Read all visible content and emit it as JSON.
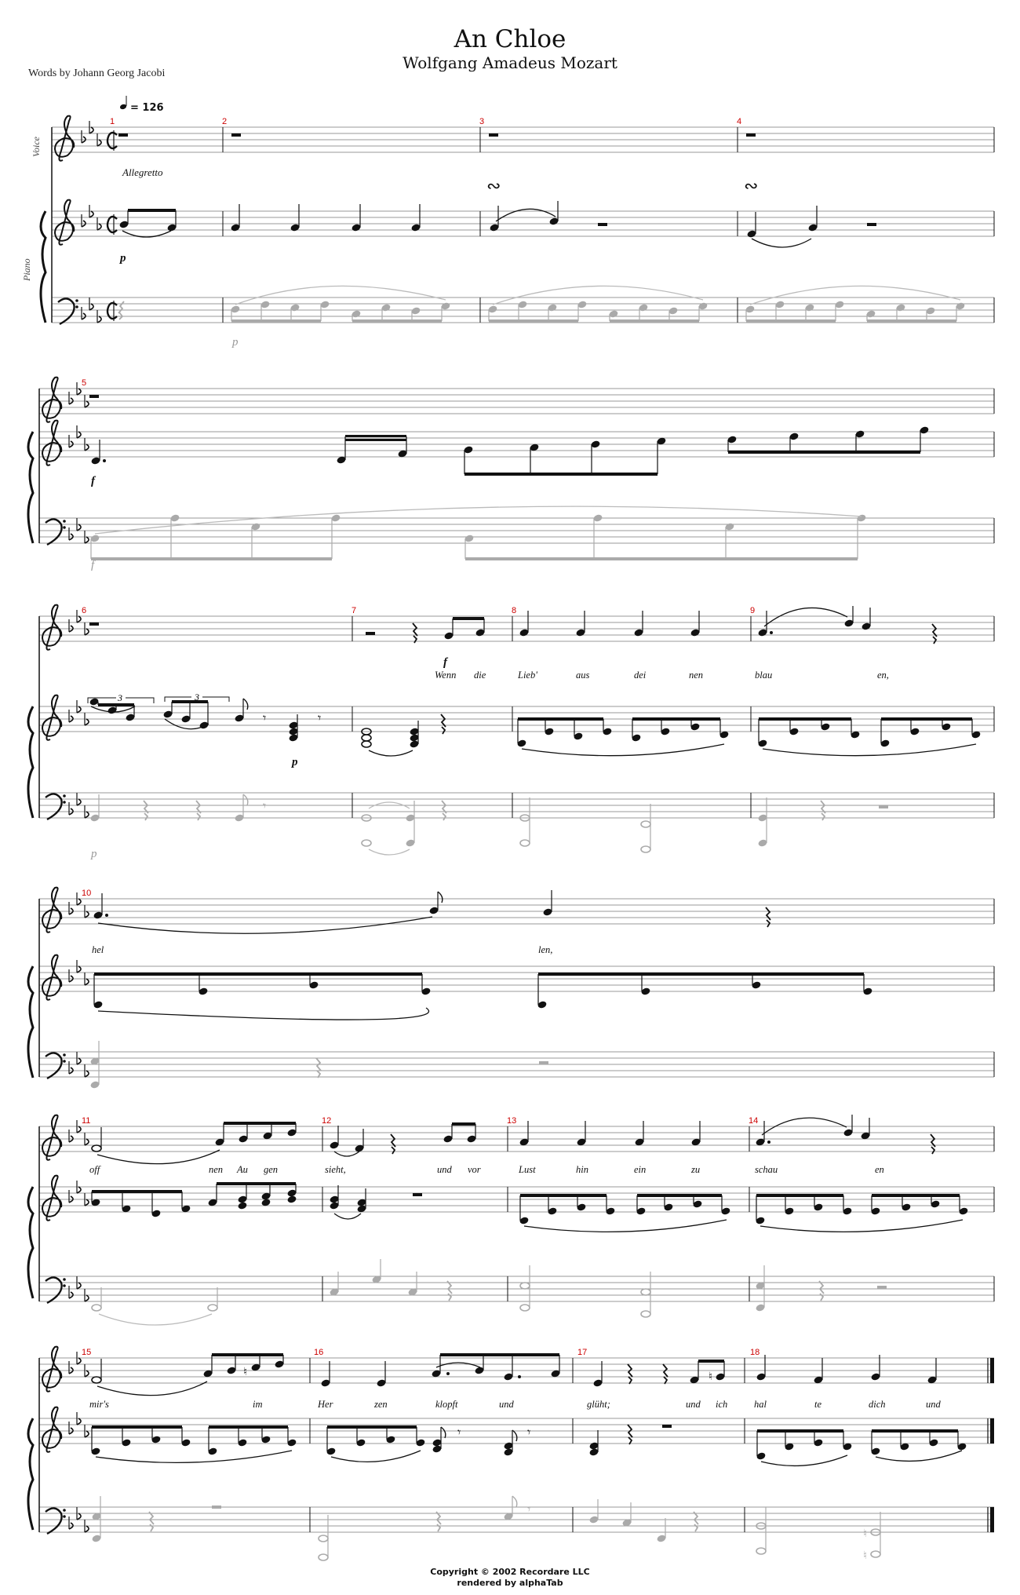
{
  "header": {
    "title": "An Chloe",
    "composer": "Wolfgang Amadeus Mozart",
    "words": "Words by Johann Georg Jacobi"
  },
  "instruments": {
    "voice": "Voice",
    "piano": "Piano"
  },
  "tempo": {
    "bpm_label": "= 126",
    "marking": "Allegretto"
  },
  "systems": [
    {
      "measures": [
        "1",
        "2",
        "3",
        "4"
      ],
      "lyrics": [],
      "dynamics": {
        "upper": "p",
        "lower": "p"
      }
    },
    {
      "measures": [
        "5"
      ],
      "lyrics": [],
      "dynamics": {
        "upper": "f",
        "lower": "f"
      }
    },
    {
      "measures": [
        "6",
        "7",
        "8",
        "9"
      ],
      "lyrics": [
        "Wenn",
        "die",
        "Lieb'",
        "aus",
        "dei",
        "nen",
        "blau",
        "en,"
      ],
      "dynamics": {
        "voice": "f",
        "upper": "p",
        "lower": "p"
      }
    },
    {
      "measures": [
        "10"
      ],
      "lyrics": [
        "hel",
        "len,"
      ],
      "dynamics": {}
    },
    {
      "measures": [
        "11",
        "12",
        "13",
        "14"
      ],
      "lyrics": [
        "off",
        "nen",
        "Au",
        "gen",
        "sieht,",
        "und",
        "vor",
        "Lust",
        "hin",
        "ein",
        "zu",
        "schau",
        "en"
      ],
      "dynamics": {}
    },
    {
      "measures": [
        "15",
        "16",
        "17",
        "18"
      ],
      "lyrics": [
        "mir's",
        "im",
        "Her",
        "zen",
        "klopft",
        "und",
        "glüht;",
        "und",
        "ich",
        "hal",
        "te",
        "dich",
        "und"
      ],
      "dynamics": {}
    }
  ],
  "tuplet_label": "3",
  "footer": {
    "copyright": "Copyright © 2002 Recordare LLC",
    "rendered": "rendered by alphaTab"
  }
}
